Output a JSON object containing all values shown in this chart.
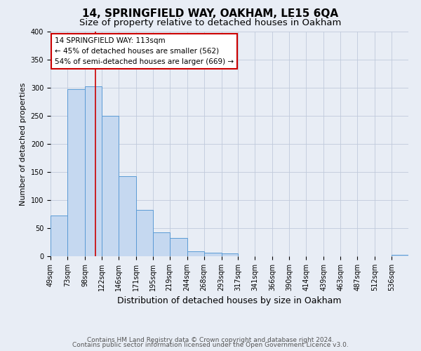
{
  "title": "14, SPRINGFIELD WAY, OAKHAM, LE15 6QA",
  "subtitle": "Size of property relative to detached houses in Oakham",
  "xlabel": "Distribution of detached houses by size in Oakham",
  "ylabel": "Number of detached properties",
  "footer_lines": [
    "Contains HM Land Registry data © Crown copyright and database right 2024.",
    "Contains public sector information licensed under the Open Government Licence v3.0."
  ],
  "bin_labels": [
    "49sqm",
    "73sqm",
    "98sqm",
    "122sqm",
    "146sqm",
    "171sqm",
    "195sqm",
    "219sqm",
    "244sqm",
    "268sqm",
    "293sqm",
    "317sqm",
    "341sqm",
    "366sqm",
    "390sqm",
    "414sqm",
    "439sqm",
    "463sqm",
    "487sqm",
    "512sqm",
    "536sqm"
  ],
  "bin_edges": [
    49,
    73,
    98,
    122,
    146,
    171,
    195,
    219,
    244,
    268,
    293,
    317,
    341,
    366,
    390,
    414,
    439,
    463,
    487,
    512,
    536,
    560
  ],
  "bar_heights": [
    73,
    298,
    303,
    250,
    142,
    83,
    43,
    32,
    9,
    6,
    5,
    0,
    0,
    0,
    0,
    0,
    0,
    0,
    0,
    0,
    3
  ],
  "bar_color": "#c5d8f0",
  "bar_edge_color": "#5b9bd5",
  "red_line_x": 113,
  "annotation_box_text": "14 SPRINGFIELD WAY: 113sqm\n← 45% of detached houses are smaller (562)\n54% of semi-detached houses are larger (669) →",
  "ylim": [
    0,
    400
  ],
  "yticks": [
    0,
    50,
    100,
    150,
    200,
    250,
    300,
    350,
    400
  ],
  "grid_color": "#c0cadb",
  "background_color": "#e8edf5",
  "title_fontsize": 11,
  "subtitle_fontsize": 9.5,
  "xlabel_fontsize": 9,
  "ylabel_fontsize": 8,
  "tick_fontsize": 7,
  "annotation_fontsize": 7.5,
  "footer_fontsize": 6.5
}
